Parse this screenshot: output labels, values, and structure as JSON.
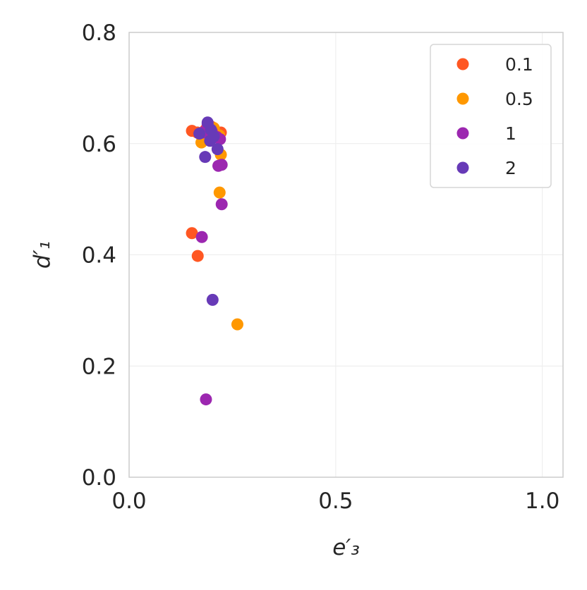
{
  "chart_data": {
    "type": "scatter",
    "title": "",
    "xlabel": "e′₃",
    "ylabel": "d′₁",
    "xlim": [
      0.0,
      1.05
    ],
    "ylim": [
      0.0,
      0.8
    ],
    "xticks": [
      0.0,
      0.5,
      1.0
    ],
    "xtick_labels": [
      "0.0",
      "0.5",
      "1.0"
    ],
    "yticks": [
      0.0,
      0.2,
      0.4,
      0.6,
      0.8
    ],
    "ytick_labels": [
      "0.0",
      "0.2",
      "0.4",
      "0.6",
      "0.8"
    ],
    "grid": true,
    "legend_position": "top-right",
    "series": [
      {
        "name": "0.1",
        "color": "#ff5722",
        "points": [
          [
            0.152,
            0.623
          ],
          [
            0.165,
            0.62
          ],
          [
            0.185,
            0.625
          ],
          [
            0.2,
            0.63
          ],
          [
            0.222,
            0.62
          ],
          [
            0.205,
            0.615
          ],
          [
            0.19,
            0.618
          ],
          [
            0.152,
            0.439
          ],
          [
            0.166,
            0.398
          ]
        ]
      },
      {
        "name": "0.5",
        "color": "#ff9800",
        "points": [
          [
            0.175,
            0.602
          ],
          [
            0.19,
            0.618
          ],
          [
            0.205,
            0.628
          ],
          [
            0.218,
            0.615
          ],
          [
            0.222,
            0.58
          ],
          [
            0.2,
            0.61
          ],
          [
            0.219,
            0.512
          ],
          [
            0.262,
            0.275
          ]
        ]
      },
      {
        "name": "1",
        "color": "#9c27b0",
        "points": [
          [
            0.178,
            0.62
          ],
          [
            0.19,
            0.635
          ],
          [
            0.2,
            0.622
          ],
          [
            0.212,
            0.612
          ],
          [
            0.22,
            0.608
          ],
          [
            0.216,
            0.56
          ],
          [
            0.224,
            0.562
          ],
          [
            0.224,
            0.491
          ],
          [
            0.176,
            0.432
          ],
          [
            0.186,
            0.14
          ]
        ]
      },
      {
        "name": "2",
        "color": "#673ab7",
        "points": [
          [
            0.17,
            0.618
          ],
          [
            0.19,
            0.638
          ],
          [
            0.198,
            0.625
          ],
          [
            0.205,
            0.613
          ],
          [
            0.196,
            0.605
          ],
          [
            0.214,
            0.59
          ],
          [
            0.184,
            0.576
          ],
          [
            0.202,
            0.319
          ]
        ]
      }
    ]
  }
}
